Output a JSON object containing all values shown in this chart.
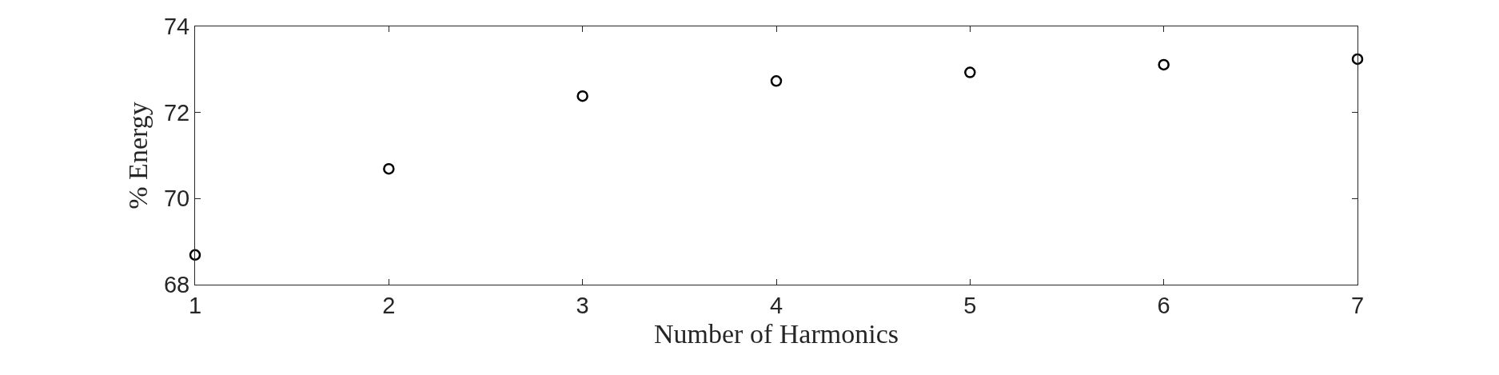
{
  "chart_data": {
    "type": "scatter",
    "xlabel": "Number of Harmonics",
    "ylabel": "% Energy",
    "x": [
      1,
      2,
      3,
      4,
      5,
      6,
      7
    ],
    "values": [
      68.69,
      70.69,
      72.38,
      72.73,
      72.93,
      73.11,
      73.24
    ],
    "color": "#000000",
    "marker": "circle",
    "xlim": [
      1,
      7
    ],
    "xticks": [
      1,
      2,
      3,
      4,
      5,
      6,
      7
    ],
    "ylim": [
      68,
      74
    ],
    "yticks": [
      68,
      70,
      72,
      74
    ],
    "legend": false
  }
}
